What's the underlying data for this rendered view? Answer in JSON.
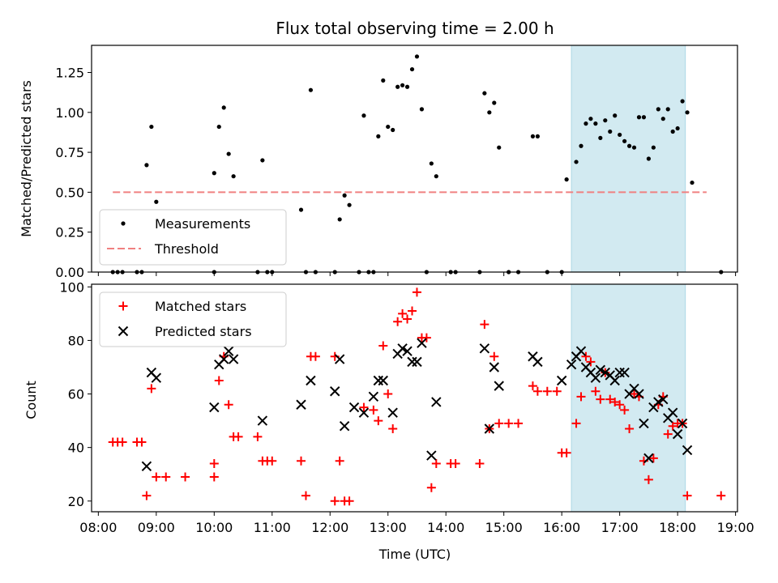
{
  "colors": {
    "measurement": "#000000",
    "threshold": "#f08080",
    "matched": "#ff0000",
    "predicted": "#000000",
    "shade": "#add8e6"
  },
  "chart_data": [
    {
      "type": "scatter",
      "title": "Flux total observing time = 2.00 h",
      "xlabel": "",
      "ylabel": "Matched/Predicted stars",
      "ylim": [
        0,
        1.42
      ],
      "xlim": [
        "07:53",
        "19:02"
      ],
      "yticks": [
        "0.00",
        "0.25",
        "0.50",
        "0.75",
        "1.00",
        "1.25"
      ],
      "shaded_interval": [
        "16:10",
        "18:08"
      ],
      "legend": {
        "position": "lower-left",
        "items": [
          "Measurements",
          "Threshold"
        ]
      },
      "threshold": {
        "name": "Threshold",
        "value": 0.5,
        "x_range": [
          "08:15",
          "18:30"
        ]
      },
      "series": [
        {
          "name": "Measurements",
          "marker": "dot",
          "points": [
            [
              "08:15",
              0
            ],
            [
              "08:20",
              0
            ],
            [
              "08:25",
              0
            ],
            [
              "08:40",
              0
            ],
            [
              "08:45",
              0
            ],
            [
              "08:50",
              0.67
            ],
            [
              "08:55",
              0.91
            ],
            [
              "09:00",
              0.44
            ],
            [
              "10:00",
              0
            ],
            [
              "10:00",
              0.62
            ],
            [
              "10:05",
              0.91
            ],
            [
              "10:10",
              1.03
            ],
            [
              "10:15",
              0.74
            ],
            [
              "10:20",
              0.6
            ],
            [
              "10:45",
              0
            ],
            [
              "10:50",
              0.7
            ],
            [
              "10:55",
              0
            ],
            [
              "11:00",
              0
            ],
            [
              "11:30",
              0.39
            ],
            [
              "11:35",
              0
            ],
            [
              "11:40",
              1.14
            ],
            [
              "11:45",
              0
            ],
            [
              "12:05",
              0
            ],
            [
              "12:10",
              0.33
            ],
            [
              "12:15",
              0.48
            ],
            [
              "12:20",
              0.42
            ],
            [
              "12:30",
              0
            ],
            [
              "12:35",
              0.98
            ],
            [
              "12:40",
              0
            ],
            [
              "12:45",
              0
            ],
            [
              "12:50",
              0.85
            ],
            [
              "12:55",
              1.2
            ],
            [
              "13:00",
              0.91
            ],
            [
              "13:05",
              0.89
            ],
            [
              "13:10",
              1.16
            ],
            [
              "13:15",
              1.17
            ],
            [
              "13:20",
              1.16
            ],
            [
              "13:25",
              1.27
            ],
            [
              "13:30",
              1.35
            ],
            [
              "13:35",
              1.02
            ],
            [
              "13:40",
              0
            ],
            [
              "13:45",
              0.68
            ],
            [
              "13:50",
              0.6
            ],
            [
              "14:05",
              0
            ],
            [
              "14:10",
              0
            ],
            [
              "14:35",
              0
            ],
            [
              "14:40",
              1.12
            ],
            [
              "14:45",
              1.0
            ],
            [
              "14:50",
              1.06
            ],
            [
              "14:55",
              0.78
            ],
            [
              "15:05",
              0
            ],
            [
              "15:15",
              0
            ],
            [
              "15:30",
              0.85
            ],
            [
              "15:35",
              0.85
            ],
            [
              "15:45",
              0
            ],
            [
              "16:00",
              0
            ],
            [
              "16:05",
              0.58
            ],
            [
              "16:15",
              0.69
            ],
            [
              "16:20",
              0.79
            ],
            [
              "16:25",
              0.93
            ],
            [
              "16:30",
              0.96
            ],
            [
              "16:35",
              0.93
            ],
            [
              "16:40",
              0.84
            ],
            [
              "16:45",
              0.95
            ],
            [
              "16:50",
              0.88
            ],
            [
              "16:55",
              0.98
            ],
            [
              "17:00",
              0.86
            ],
            [
              "17:05",
              0.82
            ],
            [
              "17:10",
              0.79
            ],
            [
              "17:15",
              0.78
            ],
            [
              "17:20",
              0.97
            ],
            [
              "17:25",
              0.97
            ],
            [
              "17:30",
              0.71
            ],
            [
              "17:35",
              0.78
            ],
            [
              "17:40",
              1.02
            ],
            [
              "17:45",
              0.96
            ],
            [
              "17:50",
              1.02
            ],
            [
              "17:55",
              0.88
            ],
            [
              "18:00",
              0.9
            ],
            [
              "18:05",
              1.07
            ],
            [
              "18:10",
              1.0
            ],
            [
              "18:15",
              0.56
            ],
            [
              "18:45",
              0
            ]
          ]
        }
      ]
    },
    {
      "type": "scatter",
      "title": "",
      "xlabel": "Time (UTC)",
      "ylabel": "Count",
      "ylim": [
        16,
        101
      ],
      "xlim": [
        "07:53",
        "19:02"
      ],
      "xticks": [
        "08:00",
        "09:00",
        "10:00",
        "11:00",
        "12:00",
        "13:00",
        "14:00",
        "15:00",
        "16:00",
        "17:00",
        "18:00",
        "19:00"
      ],
      "yticks": [
        "20",
        "40",
        "60",
        "80",
        "100"
      ],
      "shaded_interval": [
        "16:10",
        "18:08"
      ],
      "legend": {
        "position": "top-left",
        "items": [
          "Matched stars",
          "Predicted stars"
        ]
      },
      "series": [
        {
          "name": "Matched stars",
          "marker": "plus",
          "points": [
            [
              "08:15",
              42
            ],
            [
              "08:20",
              42
            ],
            [
              "08:25",
              42
            ],
            [
              "08:40",
              42
            ],
            [
              "08:45",
              42
            ],
            [
              "08:50",
              22
            ],
            [
              "08:55",
              62
            ],
            [
              "09:00",
              29
            ],
            [
              "09:10",
              29
            ],
            [
              "09:30",
              29
            ],
            [
              "10:00",
              34
            ],
            [
              "10:00",
              29
            ],
            [
              "10:05",
              65
            ],
            [
              "10:10",
              74
            ],
            [
              "10:15",
              56
            ],
            [
              "10:20",
              44
            ],
            [
              "10:25",
              44
            ],
            [
              "10:45",
              44
            ],
            [
              "10:50",
              35
            ],
            [
              "10:55",
              35
            ],
            [
              "11:00",
              35
            ],
            [
              "11:30",
              35
            ],
            [
              "11:35",
              22
            ],
            [
              "11:40",
              74
            ],
            [
              "11:45",
              74
            ],
            [
              "12:05",
              74
            ],
            [
              "12:05",
              20
            ],
            [
              "12:10",
              35
            ],
            [
              "12:15",
              20
            ],
            [
              "12:20",
              20
            ],
            [
              "12:35",
              55
            ],
            [
              "12:45",
              54
            ],
            [
              "12:50",
              50
            ],
            [
              "12:55",
              78
            ],
            [
              "13:00",
              60
            ],
            [
              "13:05",
              47
            ],
            [
              "13:10",
              87
            ],
            [
              "13:15",
              90
            ],
            [
              "13:20",
              88
            ],
            [
              "13:25",
              91
            ],
            [
              "13:30",
              98
            ],
            [
              "13:35",
              81
            ],
            [
              "13:40",
              81
            ],
            [
              "13:45",
              25
            ],
            [
              "13:50",
              34
            ],
            [
              "14:05",
              34
            ],
            [
              "14:10",
              34
            ],
            [
              "14:35",
              34
            ],
            [
              "14:40",
              86
            ],
            [
              "14:45",
              47
            ],
            [
              "14:50",
              74
            ],
            [
              "14:55",
              49
            ],
            [
              "15:05",
              49
            ],
            [
              "15:15",
              49
            ],
            [
              "15:30",
              63
            ],
            [
              "15:35",
              61
            ],
            [
              "15:45",
              61
            ],
            [
              "15:55",
              61
            ],
            [
              "16:00",
              38
            ],
            [
              "16:05",
              38
            ],
            [
              "16:15",
              49
            ],
            [
              "16:20",
              59
            ],
            [
              "16:25",
              74
            ],
            [
              "16:30",
              72
            ],
            [
              "16:35",
              61
            ],
            [
              "16:40",
              58
            ],
            [
              "16:45",
              68
            ],
            [
              "16:50",
              58
            ],
            [
              "16:55",
              57
            ],
            [
              "17:00",
              56
            ],
            [
              "17:05",
              54
            ],
            [
              "17:10",
              47
            ],
            [
              "17:15",
              60
            ],
            [
              "17:20",
              59
            ],
            [
              "17:25",
              35
            ],
            [
              "17:30",
              28
            ],
            [
              "17:35",
              36
            ],
            [
              "17:40",
              56
            ],
            [
              "17:45",
              59
            ],
            [
              "17:50",
              45
            ],
            [
              "17:55",
              48
            ],
            [
              "18:00",
              49
            ],
            [
              "18:05",
              49
            ],
            [
              "18:10",
              22
            ],
            [
              "18:45",
              22
            ]
          ]
        },
        {
          "name": "Predicted stars",
          "marker": "x",
          "points": [
            [
              "08:50",
              33
            ],
            [
              "08:55",
              68
            ],
            [
              "09:00",
              66
            ],
            [
              "10:00",
              55
            ],
            [
              "10:05",
              71
            ],
            [
              "10:10",
              73
            ],
            [
              "10:15",
              76
            ],
            [
              "10:20",
              73
            ],
            [
              "10:50",
              50
            ],
            [
              "11:30",
              56
            ],
            [
              "11:40",
              65
            ],
            [
              "12:05",
              61
            ],
            [
              "12:10",
              73
            ],
            [
              "12:15",
              48
            ],
            [
              "12:25",
              55
            ],
            [
              "12:35",
              53
            ],
            [
              "12:45",
              59
            ],
            [
              "12:50",
              65
            ],
            [
              "12:55",
              65
            ],
            [
              "13:05",
              53
            ],
            [
              "13:10",
              75
            ],
            [
              "13:15",
              77
            ],
            [
              "13:20",
              76
            ],
            [
              "13:25",
              72
            ],
            [
              "13:30",
              72
            ],
            [
              "13:35",
              79
            ],
            [
              "13:45",
              37
            ],
            [
              "13:50",
              57
            ],
            [
              "14:40",
              77
            ],
            [
              "14:45",
              47
            ],
            [
              "14:50",
              70
            ],
            [
              "14:55",
              63
            ],
            [
              "15:30",
              74
            ],
            [
              "15:35",
              72
            ],
            [
              "16:00",
              65
            ],
            [
              "16:10",
              71
            ],
            [
              "16:15",
              74
            ],
            [
              "16:20",
              76
            ],
            [
              "16:25",
              70
            ],
            [
              "16:30",
              68
            ],
            [
              "16:35",
              66
            ],
            [
              "16:40",
              69
            ],
            [
              "16:45",
              68
            ],
            [
              "16:50",
              67
            ],
            [
              "16:55",
              65
            ],
            [
              "17:00",
              68
            ],
            [
              "17:05",
              68
            ],
            [
              "17:10",
              60
            ],
            [
              "17:15",
              62
            ],
            [
              "17:20",
              60
            ],
            [
              "17:25",
              49
            ],
            [
              "17:30",
              36
            ],
            [
              "17:35",
              55
            ],
            [
              "17:40",
              57
            ],
            [
              "17:45",
              58
            ],
            [
              "17:50",
              51
            ],
            [
              "17:55",
              53
            ],
            [
              "18:00",
              45
            ],
            [
              "18:05",
              49
            ],
            [
              "18:10",
              39
            ]
          ]
        }
      ]
    }
  ]
}
